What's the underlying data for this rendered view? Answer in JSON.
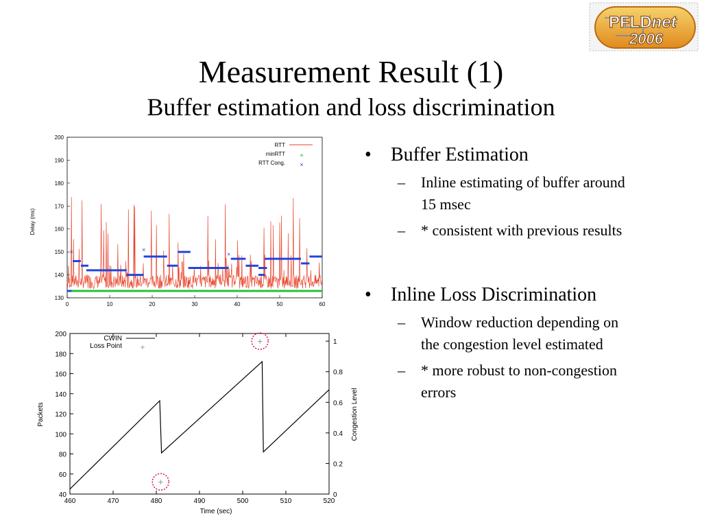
{
  "logo": {
    "text_pfl": "PFLD",
    "text_net": "net",
    "year": "2006"
  },
  "slide": {
    "title": "Measurement Result (1)",
    "subtitle": "Buffer estimation and loss discrimination"
  },
  "bullets": [
    {
      "text": "Buffer Estimation",
      "subs": [
        "Inline estimating of buffer around 15 msec",
        "* consistent with previous results"
      ]
    },
    {
      "text": "Inline Loss Discrimination",
      "subs": [
        "Window reduction depending on the congestion level estimated",
        "* more robust to non-congestion errors"
      ]
    }
  ],
  "chart_data": [
    {
      "type": "line",
      "ylabel": "Delay (ms)",
      "xlim": [
        0,
        60
      ],
      "ylim": [
        130,
        200
      ],
      "x_ticks": [
        "0",
        "10",
        "20",
        "30",
        "40",
        "50",
        "60"
      ],
      "y_ticks": [
        "130",
        "140",
        "150",
        "160",
        "170",
        "180",
        "190",
        "200"
      ],
      "legend_position": "top-right",
      "series": [
        {
          "name": "RTT",
          "color": "#e8422a",
          "style": "line"
        },
        {
          "name": "minRTT",
          "color": "#22c23a",
          "style": "plus",
          "values_note_y": 133
        },
        {
          "name": "RTT Cong.",
          "color": "#2244dd",
          "style": "cross",
          "segments": [
            {
              "x": [
                0,
                1
              ],
              "y": 133
            },
            {
              "x": 1,
              "y": 150
            },
            {
              "x": [
                1.3,
                3.2
              ],
              "y": 146
            },
            {
              "x": [
                3.2,
                5
              ],
              "y": 144
            },
            {
              "x": [
                4.5,
                14
              ],
              "y": 142
            },
            {
              "x": [
                14,
                18
              ],
              "y": 140
            },
            {
              "x": 18,
              "y": 151
            },
            {
              "x": [
                18,
                23.5
              ],
              "y": 148
            },
            {
              "x": [
                23.5,
                26
              ],
              "y": 144
            },
            {
              "x": [
                26,
                29
              ],
              "y": 150
            },
            {
              "x": [
                28.5,
                38
              ],
              "y": 143
            },
            {
              "x": 38,
              "y": 149
            },
            {
              "x": [
                38.5,
                42
              ],
              "y": 147
            },
            {
              "x": [
                42,
                45
              ],
              "y": 144
            },
            {
              "x": [
                45,
                47
              ],
              "y": 143
            },
            {
              "x": [
                45,
                46.5
              ],
              "y": 140
            },
            {
              "x": [
                46.5,
                55
              ],
              "y": 147
            },
            {
              "x": [
                55,
                57
              ],
              "y": 145
            },
            {
              "x": [
                57,
                60
              ],
              "y": 148
            }
          ]
        }
      ]
    },
    {
      "type": "line",
      "xlabel": "Time (sec)",
      "ylabel": "Packets",
      "y2label": "Congestion Level",
      "xlim": [
        460,
        520
      ],
      "ylim": [
        40,
        200
      ],
      "y2lim": [
        0,
        1.05
      ],
      "x_ticks": [
        "460",
        "470",
        "480",
        "490",
        "500",
        "510",
        "520"
      ],
      "y_ticks": [
        "40",
        "60",
        "80",
        "100",
        "120",
        "140",
        "160",
        "180",
        "200"
      ],
      "y2_ticks": [
        "0",
        "0.2",
        "0.4",
        "0.6",
        "0.8",
        "1"
      ],
      "legend_position": "top-left",
      "series": [
        {
          "name": "CWIN",
          "x": [
            460,
            480.8,
            481.2,
            504.5,
            504.8,
            520
          ],
          "y": [
            45,
            133,
            81,
            172,
            82,
            144
          ]
        },
        {
          "name": "Loss Point",
          "points": [
            {
              "x": 481,
              "y2": 0.08
            },
            {
              "x": 504,
              "y2": 1.0
            }
          ]
        }
      ]
    }
  ]
}
